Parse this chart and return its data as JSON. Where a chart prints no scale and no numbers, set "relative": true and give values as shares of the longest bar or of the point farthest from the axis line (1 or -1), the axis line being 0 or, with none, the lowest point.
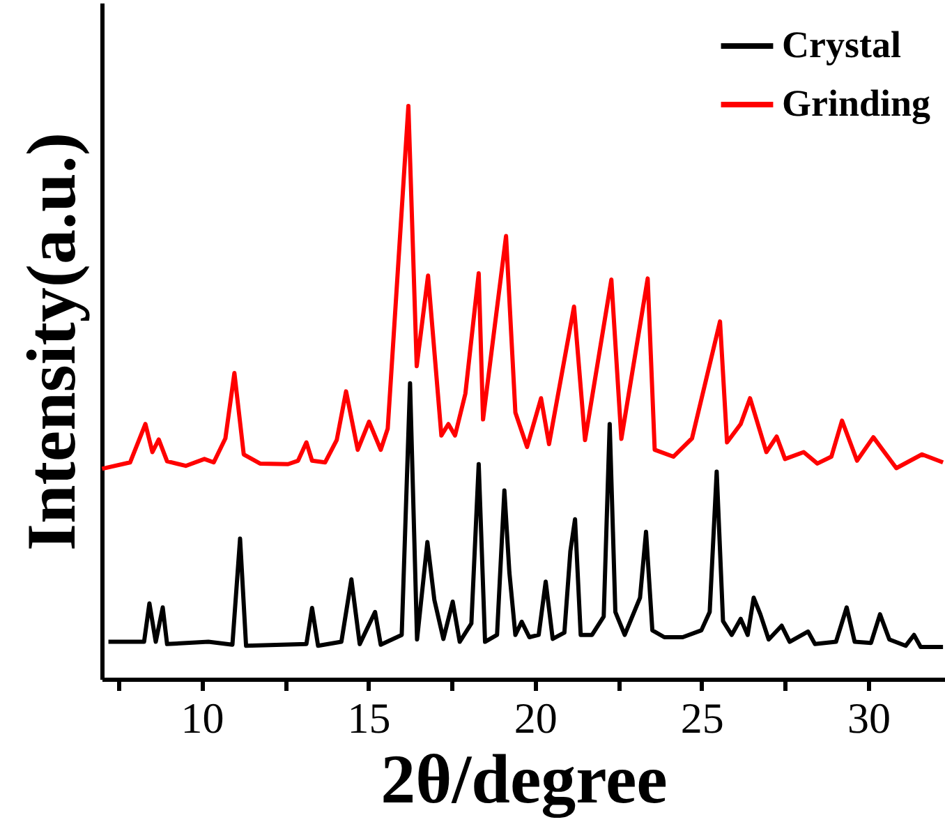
{
  "chart_data": {
    "type": "line",
    "relative": true,
    "xlabel": "2θ/degree",
    "ylabel": "Intensity(a.u.)",
    "xlim": [
      7,
      32.3
    ],
    "xticks": [
      {
        "value": 7.5,
        "label": null
      },
      10,
      {
        "value": 12.5,
        "label": null
      },
      15,
      {
        "value": 17.5,
        "label": null
      },
      20,
      {
        "value": 22.5,
        "label": null
      },
      25,
      {
        "value": 27.5,
        "label": null
      },
      30
    ],
    "tick_labels": "x",
    "legend": "top right",
    "grid": false,
    "marker": "none",
    "line_style": "solid",
    "series": [
      {
        "name": "Crystal",
        "color": "#000000",
        "x": [
          7.2,
          8.27,
          8.43,
          8.62,
          8.83,
          8.96,
          10.2,
          10.92,
          11.15,
          11.33,
          13.14,
          13.31,
          13.49,
          14.19,
          14.49,
          14.74,
          15.2,
          15.37,
          16.0,
          16.25,
          16.46,
          16.77,
          16.98,
          17.25,
          17.53,
          17.74,
          18.09,
          18.31,
          18.5,
          18.86,
          19.08,
          19.23,
          19.41,
          19.6,
          19.83,
          20.11,
          20.32,
          20.53,
          20.88,
          21.06,
          21.2,
          21.37,
          21.71,
          22.06,
          22.24,
          22.41,
          22.69,
          23.15,
          23.33,
          23.52,
          23.88,
          24.43,
          24.99,
          25.24,
          25.45,
          25.64,
          25.9,
          26.17,
          26.38,
          26.56,
          26.76,
          27.01,
          27.4,
          27.64,
          28.19,
          28.4,
          29.03,
          29.35,
          29.59,
          30.08,
          30.35,
          30.63,
          31.12,
          31.37,
          31.57,
          32.24
        ],
        "values": [
          0.065,
          0.065,
          0.132,
          0.065,
          0.125,
          0.061,
          0.065,
          0.06,
          0.245,
          0.058,
          0.061,
          0.124,
          0.058,
          0.065,
          0.174,
          0.061,
          0.117,
          0.06,
          0.077,
          0.516,
          0.069,
          0.239,
          0.138,
          0.07,
          0.135,
          0.065,
          0.097,
          0.375,
          0.065,
          0.077,
          0.329,
          0.186,
          0.077,
          0.1,
          0.073,
          0.077,
          0.17,
          0.07,
          0.081,
          0.223,
          0.279,
          0.077,
          0.077,
          0.109,
          0.445,
          0.117,
          0.077,
          0.142,
          0.257,
          0.085,
          0.073,
          0.073,
          0.085,
          0.117,
          0.362,
          0.101,
          0.077,
          0.105,
          0.077,
          0.142,
          0.113,
          0.069,
          0.093,
          0.065,
          0.083,
          0.061,
          0.065,
          0.125,
          0.065,
          0.063,
          0.113,
          0.069,
          0.058,
          0.077,
          0.056,
          0.056
        ]
      },
      {
        "name": "Grinding",
        "color": "#ff0000",
        "x": [
          7.01,
          7.85,
          8.31,
          8.52,
          8.71,
          8.96,
          9.52,
          10.08,
          10.36,
          10.71,
          10.98,
          11.26,
          11.75,
          12.59,
          12.89,
          13.14,
          13.31,
          13.7,
          14.05,
          14.33,
          14.68,
          15.02,
          15.37,
          15.58,
          16.2,
          16.45,
          16.79,
          17.19,
          17.4,
          17.6,
          17.91,
          18.31,
          18.44,
          19.13,
          19.41,
          19.76,
          20.18,
          20.42,
          21.17,
          21.5,
          22.29,
          22.59,
          23.38,
          23.59,
          24.15,
          24.71,
          25.55,
          25.76,
          26.17,
          26.45,
          26.94,
          27.25,
          27.5,
          28.06,
          28.47,
          28.89,
          29.21,
          29.66,
          30.15,
          30.84,
          31.61,
          32.24
        ],
        "values": [
          0.367,
          0.378,
          0.445,
          0.396,
          0.418,
          0.38,
          0.372,
          0.384,
          0.378,
          0.42,
          0.534,
          0.392,
          0.376,
          0.375,
          0.381,
          0.413,
          0.381,
          0.378,
          0.417,
          0.502,
          0.4,
          0.449,
          0.4,
          0.437,
          1.0,
          0.546,
          0.704,
          0.425,
          0.445,
          0.425,
          0.498,
          0.708,
          0.453,
          0.773,
          0.465,
          0.405,
          0.49,
          0.41,
          0.65,
          0.417,
          0.697,
          0.419,
          0.699,
          0.4,
          0.388,
          0.42,
          0.624,
          0.413,
          0.445,
          0.49,
          0.396,
          0.423,
          0.384,
          0.396,
          0.376,
          0.388,
          0.451,
          0.381,
          0.422,
          0.368,
          0.392,
          0.378
        ]
      }
    ]
  }
}
